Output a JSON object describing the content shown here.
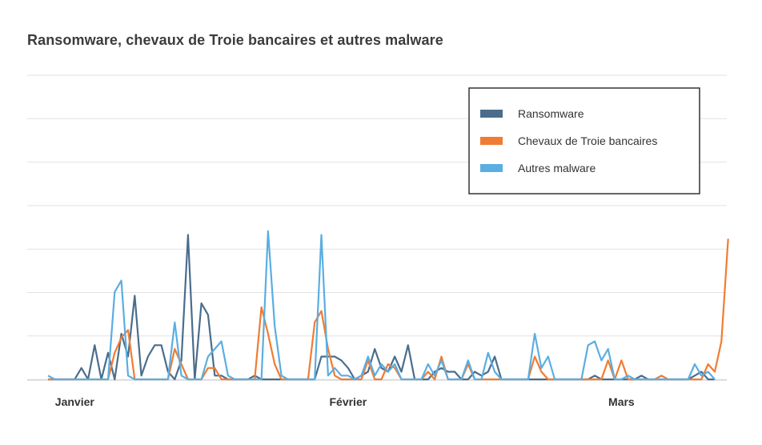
{
  "chart_data": {
    "type": "line",
    "title": "Ransomware, chevaux de Troie bancaires et autres malware",
    "xlabel": "",
    "ylabel": "",
    "x_ticks": [
      {
        "label": "Janvier",
        "index": 4
      },
      {
        "label": "Février",
        "index": 45
      },
      {
        "label": "Mars",
        "index": 86
      }
    ],
    "ylim": [
      0,
      8
    ],
    "grid": true,
    "legend_position": "top-right",
    "series": [
      {
        "name": "Ransomware",
        "color": "#4a6d8c",
        "values": [
          0,
          0,
          0,
          0,
          0,
          0.3,
          0,
          0.9,
          0,
          0.7,
          0,
          1.2,
          0.6,
          2.2,
          0.1,
          0.6,
          0.9,
          0.9,
          0.2,
          0,
          0.5,
          3.8,
          0,
          2.0,
          1.7,
          0.1,
          0.1,
          0,
          0,
          0,
          0,
          0.1,
          0,
          0,
          0,
          0,
          0,
          0,
          0,
          0,
          0,
          0.6,
          0.6,
          0.6,
          0.5,
          0.3,
          0,
          0.1,
          0.2,
          0.8,
          0.3,
          0.2,
          0.6,
          0.2,
          0.9,
          0,
          0,
          0,
          0.2,
          0.3,
          0.2,
          0.2,
          0,
          0,
          0.2,
          0.1,
          0.2,
          0.6,
          0,
          0,
          0,
          0,
          0,
          0,
          0,
          0,
          0,
          0,
          0,
          0,
          0,
          0,
          0.1,
          0,
          0,
          0,
          0,
          0,
          0,
          0.1,
          0,
          0,
          0,
          0,
          0,
          0,
          0,
          0.1,
          0.2,
          0,
          0
        ]
      },
      {
        "name": "Chevaux de Troie bancaires",
        "color": "#f07c34",
        "values": [
          0,
          0,
          0,
          0,
          0,
          0,
          0,
          0,
          0,
          0,
          0.7,
          1.1,
          1.3,
          0,
          0,
          0,
          0,
          0,
          0,
          0.8,
          0.4,
          0,
          0,
          0,
          0.3,
          0.3,
          0,
          0,
          0,
          0,
          0,
          0,
          1.9,
          1.2,
          0.4,
          0,
          0,
          0,
          0,
          0,
          1.5,
          1.8,
          0.8,
          0.1,
          0,
          0,
          0,
          0,
          0.5,
          0,
          0,
          0.4,
          0.3,
          0,
          0,
          0,
          0,
          0.2,
          0,
          0.6,
          0,
          0,
          0,
          0.4,
          0,
          0,
          0,
          0,
          0,
          0,
          0,
          0,
          0,
          0.6,
          0.2,
          0,
          0,
          0,
          0,
          0,
          0,
          0,
          0,
          0,
          0.5,
          0,
          0.5,
          0,
          0,
          0,
          0,
          0,
          0.1,
          0,
          0,
          0,
          0,
          0,
          0,
          0.4,
          0.2,
          1.0,
          3.7
        ]
      },
      {
        "name": "Autres malware",
        "color": "#5aaee2",
        "values": [
          0.1,
          0,
          0,
          0,
          0,
          0,
          0,
          0,
          0,
          0,
          2.3,
          2.6,
          0.1,
          0,
          0,
          0,
          0,
          0,
          0,
          1.5,
          0.1,
          0,
          0,
          0,
          0.6,
          0.8,
          1.0,
          0.1,
          0,
          0,
          0,
          0,
          0,
          3.9,
          1.4,
          0.1,
          0,
          0,
          0,
          0,
          0,
          3.8,
          0.1,
          0.3,
          0.1,
          0.1,
          0,
          0.1,
          0.6,
          0.1,
          0.4,
          0.2,
          0.4,
          0,
          0,
          0,
          0,
          0.4,
          0.1,
          0.5,
          0,
          0,
          0,
          0.5,
          0,
          0,
          0.7,
          0.2,
          0,
          0,
          0,
          0,
          0,
          1.2,
          0.3,
          0.6,
          0,
          0,
          0,
          0,
          0,
          0.9,
          1.0,
          0.5,
          0.8,
          0,
          0,
          0.1,
          0,
          0,
          0,
          0,
          0,
          0,
          0,
          0,
          0,
          0.4,
          0.1,
          0.2,
          0
        ]
      }
    ]
  }
}
